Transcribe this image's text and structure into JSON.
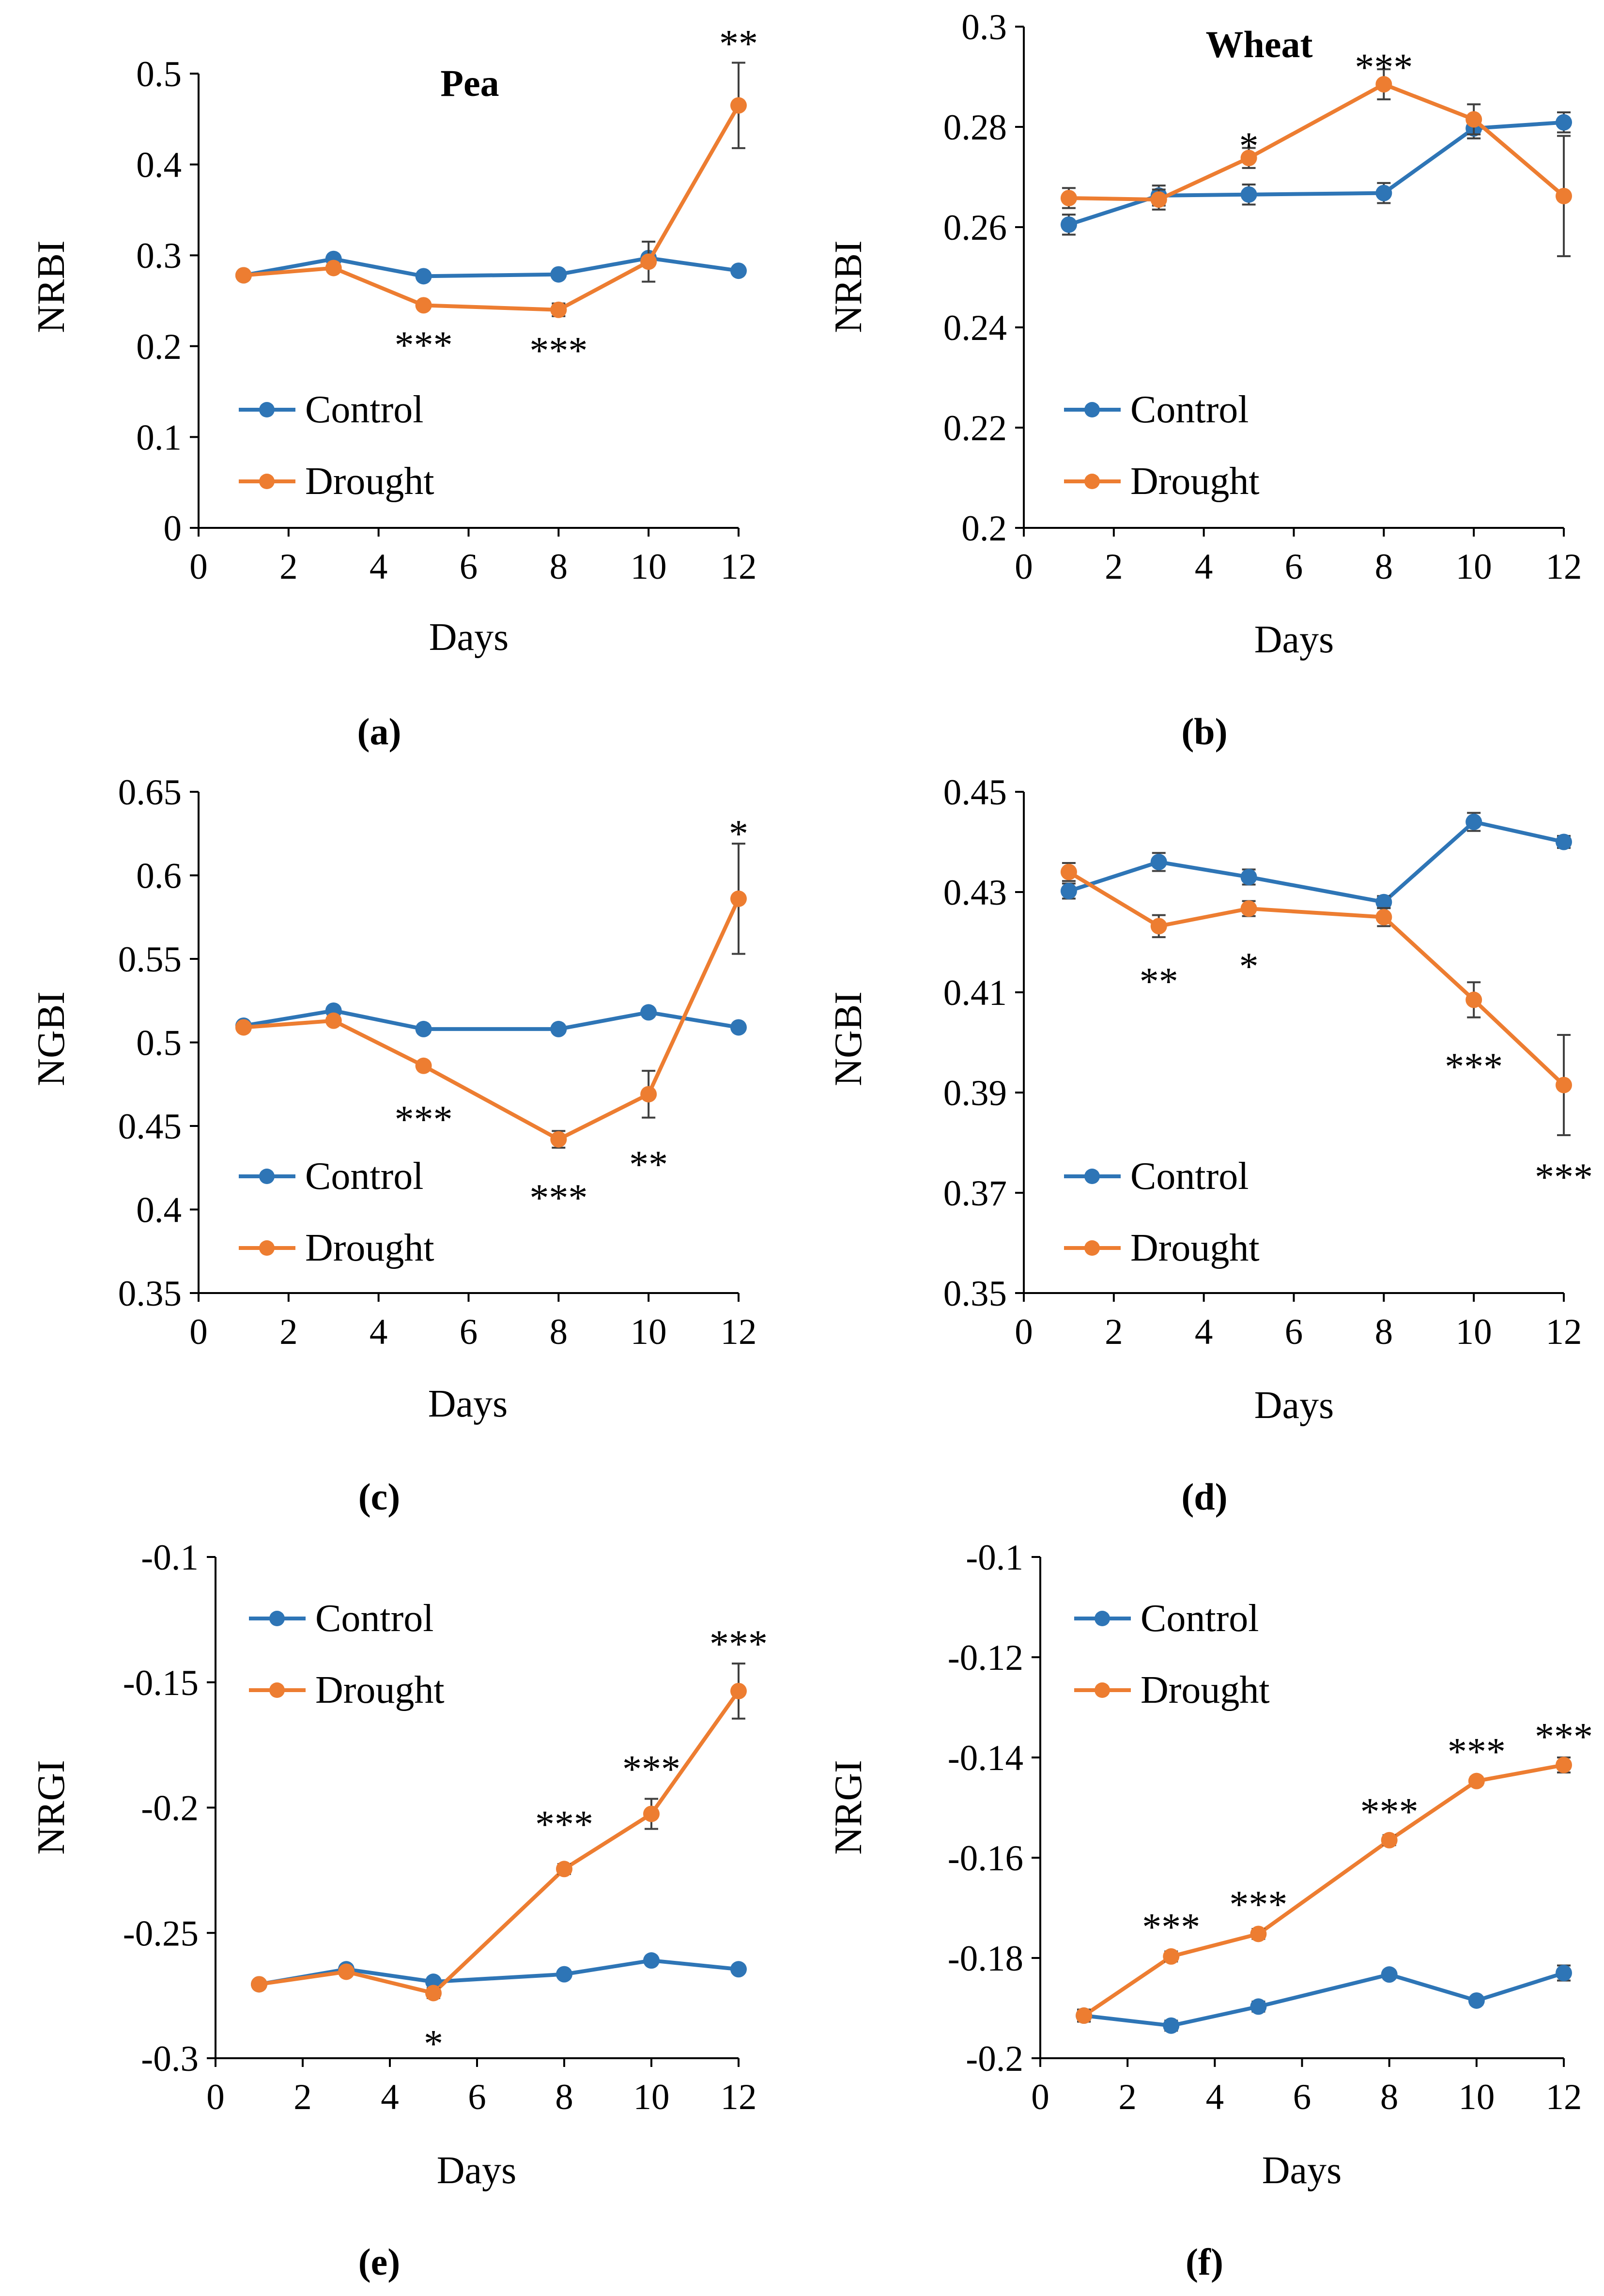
{
  "colors": {
    "control": "#2E75B6",
    "drought": "#ED7D31",
    "errorbar": "#404040",
    "axis": "#000000"
  },
  "chart_data": [
    {
      "type": "line",
      "panel": "a",
      "caption": "(a)",
      "title": "Pea",
      "xlabel": "Days",
      "ylabel": "NRBI",
      "xlim": [
        0,
        12
      ],
      "xticks": [
        "0",
        "2",
        "4",
        "6",
        "8",
        "10",
        "12"
      ],
      "ylim": [
        0,
        0.5
      ],
      "yticks": [
        "0",
        "0.1",
        "0.2",
        "0.3",
        "0.4",
        "0.5"
      ],
      "legend": [
        "Control",
        "Drought"
      ],
      "x": [
        1,
        3,
        5,
        8,
        10,
        12
      ],
      "series": [
        {
          "name": "Control",
          "values": [
            0.278,
            0.296,
            0.277,
            0.279,
            0.297,
            0.283
          ],
          "errors": [
            0.003,
            0.003,
            0.003,
            0.003,
            0.003,
            0.003
          ]
        },
        {
          "name": "Drought",
          "values": [
            0.278,
            0.286,
            0.245,
            0.24,
            0.293,
            0.465
          ],
          "errors": [
            0.003,
            0.003,
            0.003,
            0.007,
            0.022,
            0.047
          ]
        }
      ],
      "significance": [
        {
          "x": 5,
          "value": 0.203,
          "label": "***"
        },
        {
          "x": 8,
          "value": 0.197,
          "label": "***"
        },
        {
          "x": 12,
          "value": 0.535,
          "label": "**"
        }
      ]
    },
    {
      "type": "line",
      "panel": "b",
      "caption": "(b)",
      "title": "Wheat",
      "xlabel": "Days",
      "ylabel": "NRBI",
      "xlim": [
        0,
        12
      ],
      "xticks": [
        "0",
        "2",
        "4",
        "6",
        "8",
        "10",
        "12"
      ],
      "ylim": [
        0.2,
        0.3
      ],
      "yticks": [
        "0.2",
        "0.22",
        "0.24",
        "0.26",
        "0.28",
        "0.3"
      ],
      "legend": [
        "Control",
        "Drought"
      ],
      "x": [
        1,
        3,
        5,
        8,
        10,
        12
      ],
      "series": [
        {
          "name": "Control",
          "values": [
            0.2605,
            0.2663,
            0.2665,
            0.2668,
            0.2797,
            0.2809
          ],
          "errors": [
            0.002,
            0.002,
            0.002,
            0.002,
            0.002,
            0.002
          ]
        },
        {
          "name": "Drought",
          "values": [
            0.2658,
            0.2655,
            0.2738,
            0.2885,
            0.2815,
            0.2662
          ],
          "errors": [
            0.002,
            0.002,
            0.002,
            0.003,
            0.003,
            0.012
          ]
        }
      ],
      "significance": [
        {
          "x": 5,
          "value": 0.2765,
          "label": "*"
        },
        {
          "x": 8,
          "value": 0.2922,
          "label": "***"
        }
      ]
    },
    {
      "type": "line",
      "panel": "c",
      "caption": "(c)",
      "title": "",
      "xlabel": "Days",
      "ylabel": "NGBI",
      "xlim": [
        0,
        12
      ],
      "xticks": [
        "0",
        "2",
        "4",
        "6",
        "8",
        "10",
        "12"
      ],
      "ylim": [
        0.35,
        0.65
      ],
      "yticks": [
        "0.35",
        "0.4",
        "0.45",
        "0.5",
        "0.55",
        "0.6",
        "0.65"
      ],
      "legend": [
        "Control",
        "Drought"
      ],
      "x": [
        1,
        3,
        5,
        8,
        10,
        12
      ],
      "series": [
        {
          "name": "Control",
          "values": [
            0.51,
            0.519,
            0.508,
            0.508,
            0.518,
            0.509
          ],
          "errors": [
            0.002,
            0.002,
            0.002,
            0.002,
            0.002,
            0.002
          ]
        },
        {
          "name": "Drought",
          "values": [
            0.509,
            0.513,
            0.486,
            0.442,
            0.469,
            0.586
          ],
          "errors": [
            0.002,
            0.002,
            0.002,
            0.005,
            0.014,
            0.033
          ]
        }
      ],
      "significance": [
        {
          "x": 5,
          "value": 0.455,
          "label": "***"
        },
        {
          "x": 8,
          "value": 0.408,
          "label": "***"
        },
        {
          "x": 10,
          "value": 0.428,
          "label": "**"
        },
        {
          "x": 12,
          "value": 0.626,
          "label": "*"
        }
      ]
    },
    {
      "type": "line",
      "panel": "d",
      "caption": "(d)",
      "title": "",
      "xlabel": "Days",
      "ylabel": "NGBI",
      "xlim": [
        0,
        12
      ],
      "xticks": [
        "0",
        "2",
        "4",
        "6",
        "8",
        "10",
        "12"
      ],
      "ylim": [
        0.35,
        0.45
      ],
      "yticks": [
        "0.35",
        "0.37",
        "0.39",
        "0.41",
        "0.43",
        "0.45"
      ],
      "legend": [
        "Control",
        "Drought"
      ],
      "x": [
        1,
        3,
        5,
        8,
        10,
        12
      ],
      "series": [
        {
          "name": "Control",
          "values": [
            0.4302,
            0.436,
            0.433,
            0.428,
            0.444,
            0.44
          ],
          "errors": [
            0.0015,
            0.0018,
            0.0015,
            0.0012,
            0.0018,
            0.0012
          ]
        },
        {
          "name": "Drought",
          "values": [
            0.434,
            0.4232,
            0.4267,
            0.425,
            0.4085,
            0.3915
          ],
          "errors": [
            0.0018,
            0.0022,
            0.0015,
            0.0018,
            0.0035,
            0.01
          ]
        }
      ],
      "significance": [
        {
          "x": 3,
          "value": 0.4125,
          "label": "**"
        },
        {
          "x": 5,
          "value": 0.4155,
          "label": "*"
        },
        {
          "x": 10,
          "value": 0.3955,
          "label": "***"
        },
        {
          "x": 12,
          "value": 0.3735,
          "label": "***"
        }
      ]
    },
    {
      "type": "line",
      "panel": "e",
      "caption": "(e)",
      "title": "",
      "xlabel": "Days",
      "ylabel": "NRGI",
      "xlim": [
        0,
        12
      ],
      "xticks": [
        "0",
        "2",
        "4",
        "6",
        "8",
        "10",
        "12"
      ],
      "ylim": [
        -0.3,
        -0.1
      ],
      "yticks": [
        "-0.3",
        "-0.25",
        "-0.2",
        "-0.15",
        "-0.1"
      ],
      "legend": [
        "Control",
        "Drought"
      ],
      "x": [
        1,
        3,
        5,
        8,
        10,
        12
      ],
      "series": [
        {
          "name": "Control",
          "values": [
            -0.2705,
            -0.2645,
            -0.2695,
            -0.2665,
            -0.261,
            -0.2645
          ],
          "errors": [
            0.0015,
            0.0015,
            0.0015,
            0.0015,
            0.0015,
            0.0015
          ]
        },
        {
          "name": "Drought",
          "values": [
            -0.2705,
            -0.2655,
            -0.274,
            -0.2245,
            -0.2025,
            -0.1535
          ],
          "errors": [
            0.0015,
            0.0015,
            0.002,
            0.002,
            0.006,
            0.011
          ]
        }
      ],
      "significance": [
        {
          "x": 5,
          "value": -0.2935,
          "label": "*"
        },
        {
          "x": 8,
          "value": -0.206,
          "label": "***"
        },
        {
          "x": 10,
          "value": -0.184,
          "label": "***"
        },
        {
          "x": 12,
          "value": -0.134,
          "label": "***"
        }
      ]
    },
    {
      "type": "line",
      "panel": "f",
      "caption": "(f)",
      "title": "",
      "xlabel": "Days",
      "ylabel": "NRGI",
      "xlim": [
        0,
        12
      ],
      "xticks": [
        "0",
        "2",
        "4",
        "6",
        "8",
        "10",
        "12"
      ],
      "ylim": [
        -0.2,
        -0.1
      ],
      "yticks": [
        "-0.2",
        "-0.18",
        "-0.16",
        "-0.14",
        "-0.12",
        "-0.1"
      ],
      "legend": [
        "Control",
        "Drought"
      ],
      "x": [
        1,
        3,
        5,
        8,
        10,
        12
      ],
      "series": [
        {
          "name": "Control",
          "values": [
            -0.1915,
            -0.1935,
            -0.1897,
            -0.1833,
            -0.1885,
            -0.183
          ],
          "errors": [
            0.0012,
            0.001,
            0.001,
            0.0008,
            0.0008,
            0.0015
          ]
        },
        {
          "name": "Drought",
          "values": [
            -0.1915,
            -0.1797,
            -0.1752,
            -0.1565,
            -0.1447,
            -0.1415
          ],
          "errors": [
            0.0012,
            0.001,
            0.001,
            0.001,
            0.0008,
            0.0015
          ]
        }
      ],
      "significance": [
        {
          "x": 3,
          "value": -0.1735,
          "label": "***"
        },
        {
          "x": 5,
          "value": -0.169,
          "label": "***"
        },
        {
          "x": 8,
          "value": -0.1505,
          "label": "***"
        },
        {
          "x": 10,
          "value": -0.1385,
          "label": "***"
        },
        {
          "x": 12,
          "value": -0.1355,
          "label": "***"
        }
      ]
    }
  ]
}
